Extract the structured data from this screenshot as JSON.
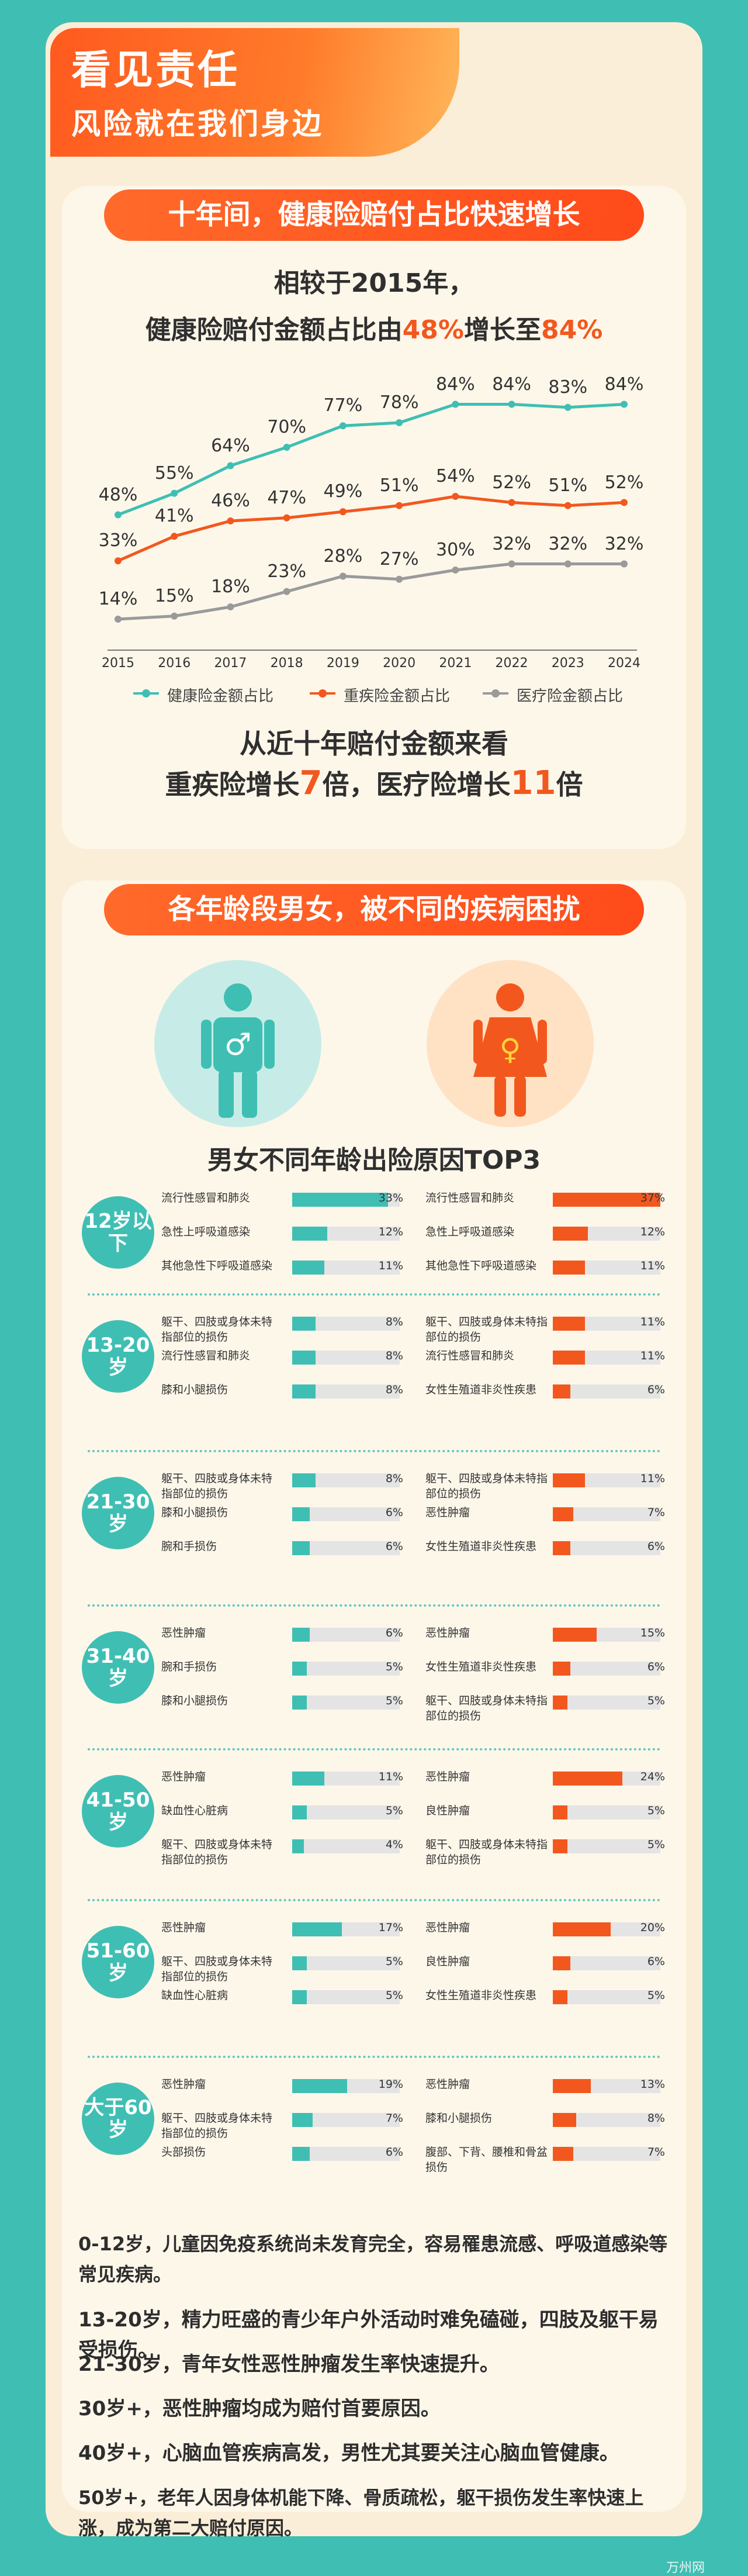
{
  "banner": {
    "title": "看见责任",
    "subtitle": "风险就在我们身边"
  },
  "section1": {
    "pill": "十年间，健康险赔付占比快速增长",
    "headline1": "相较于2015年，",
    "headline2_pre": "健康险赔付金额占比由",
    "headline2_a": "48%",
    "headline2_mid": "增长至",
    "headline2_b": "84%",
    "conclusion1": "从近十年赔付金额来看",
    "conclusion2_a": "重疾险增长",
    "conclusion2_b": "7",
    "conclusion2_c": "倍，医疗险增长",
    "conclusion2_d": "11",
    "conclusion2_e": "倍"
  },
  "chart_data": {
    "type": "line",
    "x": [
      "2015",
      "2016",
      "2017",
      "2018",
      "2019",
      "2020",
      "2021",
      "2022",
      "2023",
      "2024"
    ],
    "series": [
      {
        "name": "健康险金额占比",
        "color": "#3fbfb3",
        "values": [
          48,
          55,
          64,
          70,
          77,
          78,
          84,
          84,
          83,
          84
        ],
        "labels": [
          "48%",
          "55%",
          "64%",
          "70%",
          "77%",
          "78%",
          "84%",
          "84%",
          "83%",
          "84%"
        ]
      },
      {
        "name": "重疾险金额占比",
        "color": "#f2581e",
        "values": [
          33,
          41,
          46,
          47,
          49,
          51,
          54,
          52,
          51,
          52
        ],
        "labels": [
          "33%",
          "41%",
          "46%",
          "47%",
          "49%",
          "51%",
          "54%",
          "52%",
          "51%",
          "52%"
        ]
      },
      {
        "name": "医疗险金额占比",
        "color": "#9a9a9a",
        "values": [
          14,
          15,
          18,
          23,
          28,
          27,
          30,
          32,
          32,
          32
        ],
        "labels": [
          "14%",
          "15%",
          "18%",
          "23%",
          "28%",
          "27%",
          "30%",
          "32%",
          "32%",
          "32%"
        ]
      }
    ],
    "legend_position": "bottom"
  },
  "section2": {
    "pill": "各年龄段男女，被不同的疾病困扰",
    "top3_title": "男女不同年龄出险原因TOP3",
    "male_symbol": "♂",
    "female_symbol": "♀",
    "male_color": "#3fbfb3",
    "female_color": "#f2581e",
    "groups": [
      {
        "age": "12岁以下",
        "male": [
          {
            "label": "流行性感冒和肺炎",
            "value": 33,
            "pct": "33%"
          },
          {
            "label": "急性上呼吸道感染",
            "value": 12,
            "pct": "12%"
          },
          {
            "label": "其他急性下呼吸道感染",
            "value": 11,
            "pct": "11%"
          }
        ],
        "female": [
          {
            "label": "流行性感冒和肺炎",
            "value": 37,
            "pct": "37%"
          },
          {
            "label": "急性上呼吸道感染",
            "value": 12,
            "pct": "12%"
          },
          {
            "label": "其他急性下呼吸道感染",
            "value": 11,
            "pct": "11%"
          }
        ]
      },
      {
        "age": "13-20岁",
        "male": [
          {
            "label": "躯干、四肢或身体未特指部位的损伤",
            "value": 8,
            "pct": "8%"
          },
          {
            "label": "流行性感冒和肺炎",
            "value": 8,
            "pct": "8%"
          },
          {
            "label": "膝和小腿损伤",
            "value": 8,
            "pct": "8%"
          }
        ],
        "female": [
          {
            "label": "躯干、四肢或身体未特指部位的损伤",
            "value": 11,
            "pct": "11%"
          },
          {
            "label": "流行性感冒和肺炎",
            "value": 11,
            "pct": "11%"
          },
          {
            "label": "女性生殖道非炎性疾患",
            "value": 6,
            "pct": "6%"
          }
        ]
      },
      {
        "age": "21-30岁",
        "male": [
          {
            "label": "躯干、四肢或身体未特指部位的损伤",
            "value": 8,
            "pct": "8%"
          },
          {
            "label": "膝和小腿损伤",
            "value": 6,
            "pct": "6%"
          },
          {
            "label": "腕和手损伤",
            "value": 6,
            "pct": "6%"
          }
        ],
        "female": [
          {
            "label": "躯干、四肢或身体未特指部位的损伤",
            "value": 11,
            "pct": "11%"
          },
          {
            "label": "恶性肿瘤",
            "value": 7,
            "pct": "7%"
          },
          {
            "label": "女性生殖道非炎性疾患",
            "value": 6,
            "pct": "6%"
          }
        ]
      },
      {
        "age": "31-40岁",
        "male": [
          {
            "label": "恶性肿瘤",
            "value": 6,
            "pct": "6%"
          },
          {
            "label": "腕和手损伤",
            "value": 5,
            "pct": "5%"
          },
          {
            "label": "膝和小腿损伤",
            "value": 5,
            "pct": "5%"
          }
        ],
        "female": [
          {
            "label": "恶性肿瘤",
            "value": 15,
            "pct": "15%"
          },
          {
            "label": "女性生殖道非炎性疾患",
            "value": 6,
            "pct": "6%"
          },
          {
            "label": "躯干、四肢或身体未特指部位的损伤",
            "value": 5,
            "pct": "5%"
          }
        ]
      },
      {
        "age": "41-50岁",
        "male": [
          {
            "label": "恶性肿瘤",
            "value": 11,
            "pct": "11%"
          },
          {
            "label": "缺血性心脏病",
            "value": 5,
            "pct": "5%"
          },
          {
            "label": "躯干、四肢或身体未特指部位的损伤",
            "value": 4,
            "pct": "4%"
          }
        ],
        "female": [
          {
            "label": "恶性肿瘤",
            "value": 24,
            "pct": "24%"
          },
          {
            "label": "良性肿瘤",
            "value": 5,
            "pct": "5%"
          },
          {
            "label": "躯干、四肢或身体未特指部位的损伤",
            "value": 5,
            "pct": "5%"
          }
        ]
      },
      {
        "age": "51-60岁",
        "male": [
          {
            "label": "恶性肿瘤",
            "value": 17,
            "pct": "17%"
          },
          {
            "label": "躯干、四肢或身体未特指部位的损伤",
            "value": 5,
            "pct": "5%"
          },
          {
            "label": "缺血性心脏病",
            "value": 5,
            "pct": "5%"
          }
        ],
        "female": [
          {
            "label": "恶性肿瘤",
            "value": 20,
            "pct": "20%"
          },
          {
            "label": "良性肿瘤",
            "value": 6,
            "pct": "6%"
          },
          {
            "label": "女性生殖道非炎性疾患",
            "value": 5,
            "pct": "5%"
          }
        ]
      },
      {
        "age": "大于60岁",
        "male": [
          {
            "label": "恶性肿瘤",
            "value": 19,
            "pct": "19%"
          },
          {
            "label": "躯干、四肢或身体未特指部位的损伤",
            "value": 7,
            "pct": "7%"
          },
          {
            "label": "头部损伤",
            "value": 6,
            "pct": "6%"
          }
        ],
        "female": [
          {
            "label": "恶性肿瘤",
            "value": 13,
            "pct": "13%"
          },
          {
            "label": "膝和小腿损伤",
            "value": 8,
            "pct": "8%"
          },
          {
            "label": "腹部、下背、腰椎和骨盆损伤",
            "value": 7,
            "pct": "7%"
          }
        ]
      }
    ]
  },
  "notes": [
    "0-12岁，儿童因免疫系统尚未发育完全，容易罹患流感、呼吸道感染等常见疾病。",
    "13-20岁，精力旺盛的青少年户外活动时难免磕碰，四肢及躯干易受损伤。",
    "21-30岁，青年女性恶性肿瘤发生率快速提升。",
    "30岁+，恶性肿瘤均成为赔付首要原因。",
    "40岁+，心脑血管疾病高发，男性尤其要关注心脑血管健康。",
    "50岁+，老年人因身体机能下降、骨质疏松，躯干损伤发生率快速上涨，成为第二大赔付原因。"
  ],
  "watermark": "万州网"
}
